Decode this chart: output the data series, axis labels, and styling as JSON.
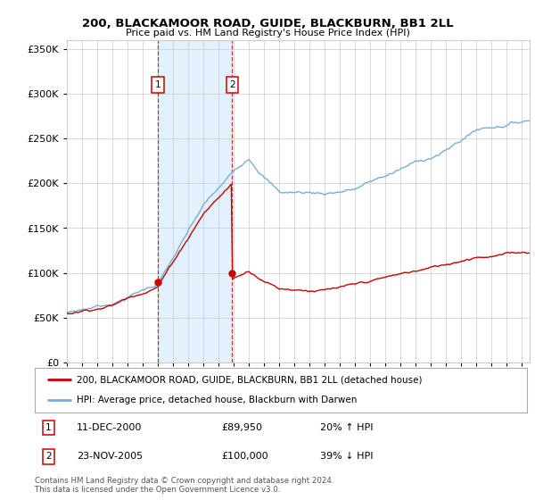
{
  "title": "200, BLACKAMOOR ROAD, GUIDE, BLACKBURN, BB1 2LL",
  "subtitle": "Price paid vs. HM Land Registry's House Price Index (HPI)",
  "legend_line1": "200, BLACKAMOOR ROAD, GUIDE, BLACKBURN, BB1 2LL (detached house)",
  "legend_line2": "HPI: Average price, detached house, Blackburn with Darwen",
  "annotation1_label": "1",
  "annotation1_date": "11-DEC-2000",
  "annotation1_price": "£89,950",
  "annotation1_hpi": "20% ↑ HPI",
  "annotation2_label": "2",
  "annotation2_date": "23-NOV-2005",
  "annotation2_price": "£100,000",
  "annotation2_hpi": "39% ↓ HPI",
  "footnote": "Contains HM Land Registry data © Crown copyright and database right 2024.\nThis data is licensed under the Open Government Licence v3.0.",
  "sale1_year": 2001.0,
  "sale1_price": 89950,
  "sale2_year": 2005.9,
  "sale2_price": 100000,
  "red_color": "#cc0000",
  "blue_color": "#7aaed4",
  "shade_color": "#ddeeff",
  "grid_color": "#cccccc",
  "background_color": "#ffffff",
  "ylim": [
    0,
    360000
  ],
  "xlim_start": 1995.0,
  "xlim_end": 2025.5
}
